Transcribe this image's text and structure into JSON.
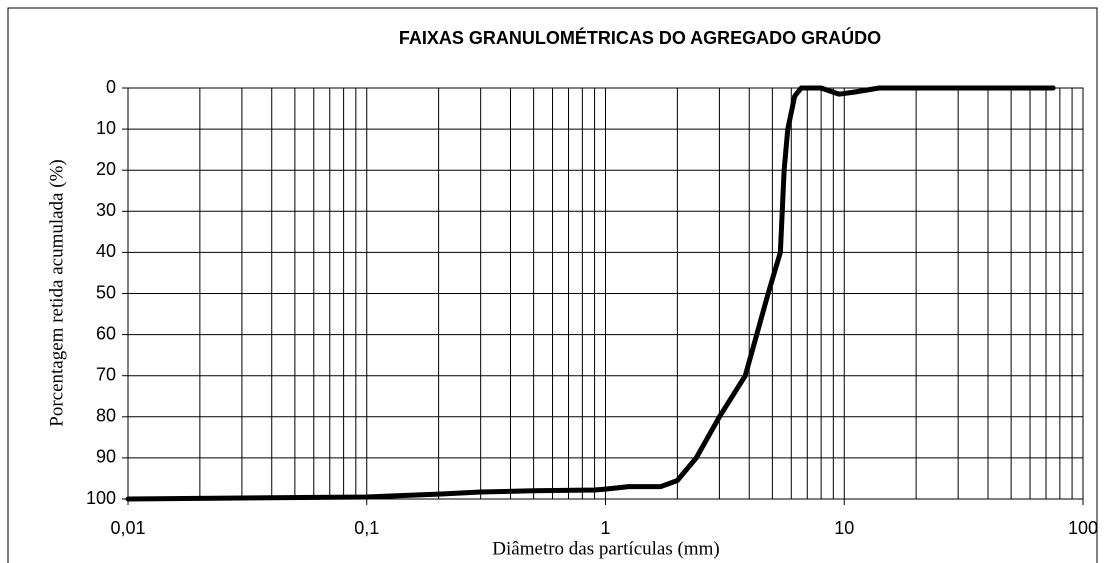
{
  "chart_data": {
    "type": "line",
    "title": "FAIXAS GRANULOMÉTRICAS DO AGREGADO GRAÚDO",
    "xlabel": "Diâmetro das partículas (mm)",
    "ylabel": "Porcentagem retida acumulada (%)",
    "xscale": "log",
    "xlim": [
      0.01,
      100
    ],
    "xticks": [
      {
        "value": 0.01,
        "label": "0,01"
      },
      {
        "value": 0.1,
        "label": "0,1"
      },
      {
        "value": 1,
        "label": "1"
      },
      {
        "value": 10,
        "label": "10"
      },
      {
        "value": 100,
        "label": "100"
      }
    ],
    "ylim": [
      100,
      0
    ],
    "yticks": [
      0,
      10,
      20,
      30,
      40,
      50,
      60,
      70,
      80,
      90,
      100
    ],
    "grid": true,
    "x": [
      0.01,
      0.1,
      0.2,
      0.3,
      0.5,
      0.9,
      1.0,
      1.25,
      1.7,
      2.0,
      2.4,
      3.0,
      3.85,
      4.3,
      4.8,
      5.4,
      5.6,
      5.8,
      6.2,
      6.6,
      8.0,
      9.5,
      11,
      14,
      75
    ],
    "series": [
      {
        "color": "#000000",
        "values": [
          100,
          99.5,
          98.8,
          98.3,
          98,
          97.8,
          97.6,
          97,
          97,
          95.5,
          90,
          80,
          70,
          60,
          50,
          40,
          20,
          10,
          2,
          0,
          0,
          1.5,
          1,
          0,
          0
        ]
      }
    ]
  }
}
